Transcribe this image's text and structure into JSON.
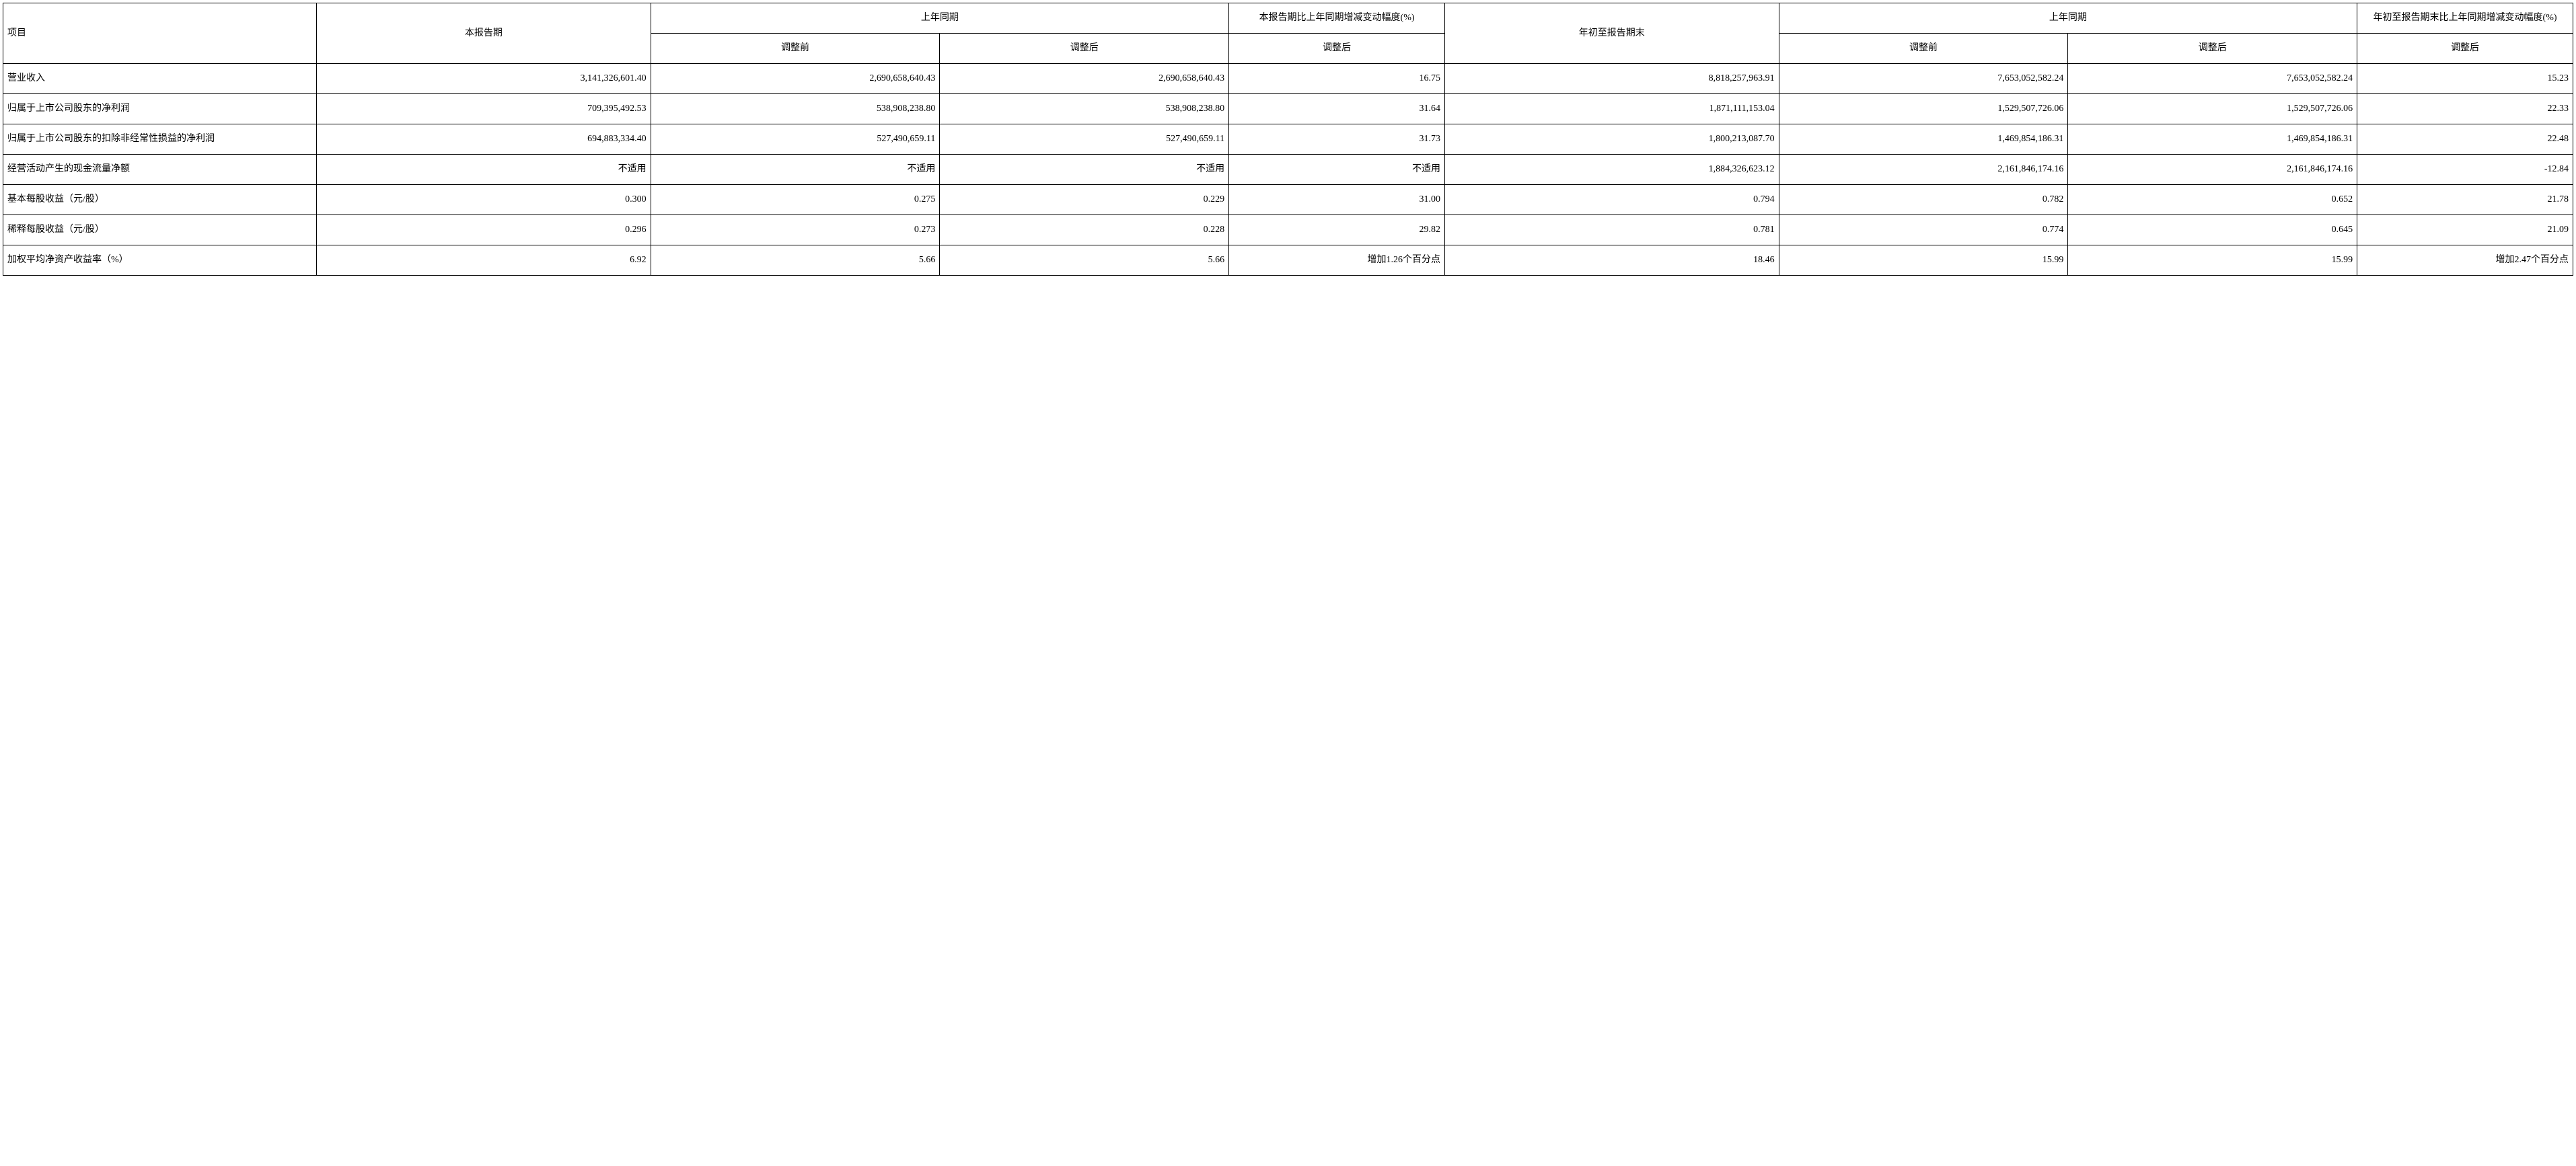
{
  "table": {
    "border_color": "#000000",
    "background_color": "#ffffff",
    "text_color": "#000000",
    "font_family": "SimSun",
    "cell_fontsize": 14,
    "line_height": 2.0,
    "columns": {
      "c0": {
        "label": "项目",
        "align": "left"
      },
      "c1": {
        "label": "本报告期",
        "align": "right"
      },
      "c2_group": {
        "label": "上年同期",
        "align": "center"
      },
      "c2": {
        "label": "调整前",
        "align": "right"
      },
      "c3": {
        "label": "调整后",
        "align": "right"
      },
      "c4_top": {
        "label": "本报告期比上年同期增减变动幅度(%)",
        "align": "center"
      },
      "c4": {
        "label": "调整后",
        "align": "right"
      },
      "c5": {
        "label": "年初至报告期末",
        "align": "right"
      },
      "c6_group": {
        "label": "上年同期",
        "align": "center"
      },
      "c6": {
        "label": "调整前",
        "align": "right"
      },
      "c7": {
        "label": "调整后",
        "align": "right"
      },
      "c8_top": {
        "label": "年初至报告期末比上年同期增减变动幅度(%)",
        "align": "center"
      },
      "c8": {
        "label": "调整后",
        "align": "right"
      }
    },
    "rows": [
      {
        "label": "营业收入",
        "c1": "3,141,326,601.40",
        "c2": "2,690,658,640.43",
        "c3": "2,690,658,640.43",
        "c4": "16.75",
        "c5": "8,818,257,963.91",
        "c6": "7,653,052,582.24",
        "c7": "7,653,052,582.24",
        "c8": "15.23"
      },
      {
        "label": "归属于上市公司股东的净利润",
        "c1": "709,395,492.53",
        "c2": "538,908,238.80",
        "c3": "538,908,238.80",
        "c4": "31.64",
        "c5": "1,871,111,153.04",
        "c6": "1,529,507,726.06",
        "c7": "1,529,507,726.06",
        "c8": "22.33"
      },
      {
        "label": "归属于上市公司股东的扣除非经常性损益的净利润",
        "c1": "694,883,334.40",
        "c2": "527,490,659.11",
        "c3": "527,490,659.11",
        "c4": "31.73",
        "c5": "1,800,213,087.70",
        "c6": "1,469,854,186.31",
        "c7": "1,469,854,186.31",
        "c8": "22.48"
      },
      {
        "label": "经营活动产生的现金流量净额",
        "c1": "不适用",
        "c2": "不适用",
        "c3": "不适用",
        "c4": "不适用",
        "c5": "1,884,326,623.12",
        "c6": "2,161,846,174.16",
        "c7": "2,161,846,174.16",
        "c8": "-12.84"
      },
      {
        "label": "基本每股收益（元/股）",
        "c1": "0.300",
        "c2": "0.275",
        "c3": "0.229",
        "c4": "31.00",
        "c5": "0.794",
        "c6": "0.782",
        "c7": "0.652",
        "c8": "21.78"
      },
      {
        "label": "稀释每股收益（元/股）",
        "c1": "0.296",
        "c2": "0.273",
        "c3": "0.228",
        "c4": "29.82",
        "c5": "0.781",
        "c6": "0.774",
        "c7": "0.645",
        "c8": "21.09"
      },
      {
        "label": "加权平均净资产收益率（%）",
        "c1": "6.92",
        "c2": "5.66",
        "c3": "5.66",
        "c4": "增加1.26个百分点",
        "c5": "18.46",
        "c6": "15.99",
        "c7": "15.99",
        "c8": "增加2.47个百分点"
      }
    ]
  }
}
